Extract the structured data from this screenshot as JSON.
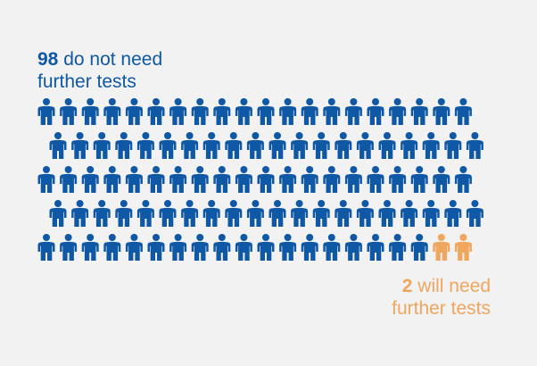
{
  "chart_data": {
    "type": "pictograph",
    "total": 100,
    "series": [
      {
        "value": 98,
        "label": "do not need",
        "label_line2": "further tests",
        "color": "#0f58a5"
      },
      {
        "value": 2,
        "label": "will need",
        "label_line2": "further tests",
        "color": "#f0a65e"
      }
    ],
    "rows": [
      20,
      20,
      20,
      20,
      20
    ],
    "icon": "person-icon"
  }
}
